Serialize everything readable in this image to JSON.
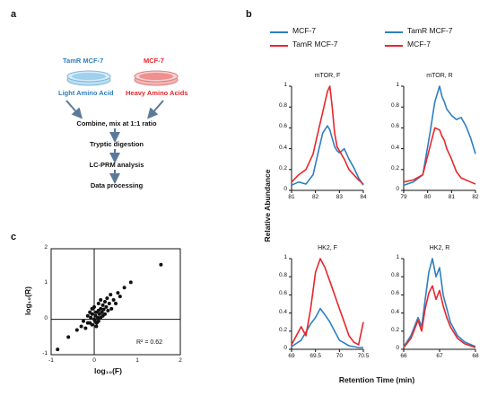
{
  "panel_a": {
    "letter": "a",
    "left_label": "TamR MCF-7",
    "left_sublabel": "Light Amino Acid",
    "right_label": "MCF-7",
    "right_sublabel": "Heavy Amino Acids",
    "steps": [
      "Combine, mix at 1:1 ratio",
      "Tryptic digestion",
      "LC-PRM analysis",
      "Data processing"
    ],
    "colors": {
      "blue": "#2f7fc1",
      "red": "#e8262c"
    }
  },
  "panel_b": {
    "letter": "b",
    "legend_left": [
      {
        "name": "MCF-7",
        "color": "#2f7fc1"
      },
      {
        "name": "TamR MCF-7",
        "color": "#e8262c"
      }
    ],
    "legend_right": [
      {
        "name": "TamR MCF-7",
        "color": "#2f7fc1"
      },
      {
        "name": "MCF-7",
        "color": "#e8262c"
      }
    ],
    "ylabel": "Relative Abundance",
    "xlabel": "Retention Time (min)"
  },
  "panel_c": {
    "letter": "c",
    "annotation": "R² = 0.62",
    "xlabel": "log₁₀(F)",
    "ylabel": "log₁₀(R)"
  },
  "chart_data": [
    {
      "type": "line",
      "title": "mTOR, F",
      "xticks": [
        "81",
        "82",
        "83",
        "84"
      ],
      "xlim": [
        81,
        84
      ],
      "yticks": [
        "0",
        "0.2",
        "0.4",
        "0.6",
        "0.8",
        "1"
      ],
      "ylim": [
        0,
        1
      ],
      "series": [
        {
          "color": "#2f7fc1",
          "x": [
            81.0,
            81.3,
            81.6,
            81.9,
            82.1,
            82.3,
            82.5,
            82.6,
            82.7,
            82.8,
            82.9,
            83.0,
            83.2,
            83.4,
            83.6,
            83.8,
            84.0
          ],
          "y": [
            0.05,
            0.08,
            0.06,
            0.15,
            0.35,
            0.55,
            0.62,
            0.58,
            0.5,
            0.42,
            0.38,
            0.36,
            0.4,
            0.3,
            0.22,
            0.12,
            0.05
          ]
        },
        {
          "color": "#e8262c",
          "x": [
            81.0,
            81.3,
            81.6,
            81.9,
            82.1,
            82.3,
            82.5,
            82.6,
            82.7,
            82.8,
            82.9,
            83.0,
            83.2,
            83.4,
            83.6,
            83.8,
            84.0
          ],
          "y": [
            0.08,
            0.15,
            0.2,
            0.35,
            0.55,
            0.75,
            0.95,
            1.0,
            0.8,
            0.55,
            0.42,
            0.38,
            0.3,
            0.2,
            0.15,
            0.1,
            0.06
          ]
        }
      ]
    },
    {
      "type": "line",
      "title": "mTOR, R",
      "xticks": [
        "79",
        "80",
        "81",
        "82"
      ],
      "xlim": [
        79,
        82
      ],
      "yticks": [
        "0",
        "0.2",
        "0.4",
        "0.6",
        "0.8",
        "1"
      ],
      "ylim": [
        0,
        1
      ],
      "series": [
        {
          "color": "#2f7fc1",
          "x": [
            79.0,
            79.4,
            79.8,
            80.1,
            80.3,
            80.5,
            80.6,
            80.7,
            80.8,
            81.0,
            81.2,
            81.4,
            81.6,
            81.8,
            82.0
          ],
          "y": [
            0.05,
            0.08,
            0.15,
            0.55,
            0.85,
            1.0,
            0.9,
            0.85,
            0.78,
            0.72,
            0.68,
            0.7,
            0.62,
            0.5,
            0.35
          ]
        },
        {
          "color": "#e8262c",
          "x": [
            79.0,
            79.4,
            79.8,
            80.1,
            80.3,
            80.5,
            80.6,
            80.7,
            80.8,
            81.0,
            81.2,
            81.4,
            81.6,
            81.8,
            82.0
          ],
          "y": [
            0.08,
            0.1,
            0.15,
            0.42,
            0.6,
            0.58,
            0.52,
            0.48,
            0.4,
            0.3,
            0.18,
            0.12,
            0.1,
            0.08,
            0.06
          ]
        }
      ]
    },
    {
      "type": "line",
      "title": "HK2, F",
      "xticks": [
        "69",
        "69.5",
        "70",
        "70.5"
      ],
      "xlim": [
        69,
        70.5
      ],
      "yticks": [
        "0",
        "0.2",
        "0.4",
        "0.6",
        "0.8",
        "1"
      ],
      "ylim": [
        0,
        1
      ],
      "series": [
        {
          "color": "#2f7fc1",
          "x": [
            69.0,
            69.2,
            69.4,
            69.5,
            69.6,
            69.7,
            69.8,
            69.9,
            70.0,
            70.2,
            70.4,
            70.5
          ],
          "y": [
            0.03,
            0.1,
            0.28,
            0.35,
            0.45,
            0.38,
            0.3,
            0.2,
            0.1,
            0.04,
            0.02,
            0.02
          ]
        },
        {
          "color": "#e8262c",
          "x": [
            69.0,
            69.2,
            69.3,
            69.4,
            69.5,
            69.6,
            69.7,
            69.8,
            69.9,
            70.0,
            70.1,
            70.2,
            70.3,
            70.4,
            70.5
          ],
          "y": [
            0.05,
            0.25,
            0.15,
            0.45,
            0.85,
            1.0,
            0.9,
            0.75,
            0.6,
            0.45,
            0.3,
            0.15,
            0.08,
            0.05,
            0.3
          ]
        }
      ]
    },
    {
      "type": "line",
      "title": "HK2, R",
      "xticks": [
        "66",
        "67",
        "68"
      ],
      "xlim": [
        66,
        68
      ],
      "yticks": [
        "0",
        "0.2",
        "0.4",
        "0.6",
        "0.8",
        "1"
      ],
      "ylim": [
        0,
        1
      ],
      "series": [
        {
          "color": "#2f7fc1",
          "x": [
            66.0,
            66.2,
            66.4,
            66.5,
            66.6,
            66.7,
            66.8,
            66.9,
            67.0,
            67.1,
            67.2,
            67.3,
            67.5,
            67.7,
            68.0
          ],
          "y": [
            0.03,
            0.15,
            0.35,
            0.25,
            0.55,
            0.85,
            1.0,
            0.8,
            0.9,
            0.6,
            0.45,
            0.3,
            0.15,
            0.08,
            0.03
          ]
        },
        {
          "color": "#e8262c",
          "x": [
            66.0,
            66.2,
            66.4,
            66.5,
            66.6,
            66.7,
            66.8,
            66.9,
            67.0,
            67.1,
            67.2,
            67.3,
            67.5,
            67.7,
            68.0
          ],
          "y": [
            0.02,
            0.12,
            0.32,
            0.2,
            0.45,
            0.62,
            0.7,
            0.55,
            0.65,
            0.48,
            0.35,
            0.25,
            0.12,
            0.06,
            0.02
          ]
        }
      ]
    },
    {
      "type": "scatter",
      "title": "",
      "xticks": [
        "-1",
        "0",
        "1",
        "2"
      ],
      "xlim": [
        -1,
        2
      ],
      "yticks": [
        "-1",
        "0",
        "1",
        "2"
      ],
      "ylim": [
        -1,
        2
      ],
      "points": [
        [
          -0.85,
          -0.85
        ],
        [
          -0.6,
          -0.5
        ],
        [
          -0.4,
          -0.3
        ],
        [
          -0.3,
          -0.2
        ],
        [
          -0.25,
          -0.05
        ],
        [
          -0.2,
          -0.25
        ],
        [
          -0.15,
          0.1
        ],
        [
          -0.1,
          -0.1
        ],
        [
          -0.08,
          0.05
        ],
        [
          -0.05,
          -0.15
        ],
        [
          -0.05,
          0.15
        ],
        [
          0.0,
          0.0
        ],
        [
          0.02,
          -0.05
        ],
        [
          0.03,
          0.1
        ],
        [
          0.05,
          0.2
        ],
        [
          0.06,
          -0.1
        ],
        [
          0.08,
          0.05
        ],
        [
          0.1,
          0.25
        ],
        [
          0.1,
          -0.05
        ],
        [
          0.12,
          0.15
        ],
        [
          0.15,
          0.3
        ],
        [
          0.15,
          0.05
        ],
        [
          0.18,
          0.2
        ],
        [
          0.2,
          0.4
        ],
        [
          0.2,
          0.1
        ],
        [
          0.22,
          0.28
        ],
        [
          0.25,
          0.5
        ],
        [
          0.25,
          0.15
        ],
        [
          0.28,
          0.35
        ],
        [
          0.3,
          0.6
        ],
        [
          0.32,
          0.25
        ],
        [
          0.35,
          0.45
        ],
        [
          0.38,
          0.7
        ],
        [
          0.4,
          0.3
        ],
        [
          0.45,
          0.55
        ],
        [
          0.5,
          0.45
        ],
        [
          0.55,
          0.75
        ],
        [
          0.6,
          0.65
        ],
        [
          0.7,
          0.9
        ],
        [
          0.85,
          1.05
        ],
        [
          1.55,
          1.55
        ],
        [
          -0.05,
          0.3
        ],
        [
          -0.1,
          0.2
        ],
        [
          0.0,
          0.35
        ],
        [
          0.05,
          -0.2
        ],
        [
          -0.15,
          -0.1
        ],
        [
          0.1,
          0.45
        ],
        [
          0.15,
          0.55
        ]
      ]
    }
  ]
}
